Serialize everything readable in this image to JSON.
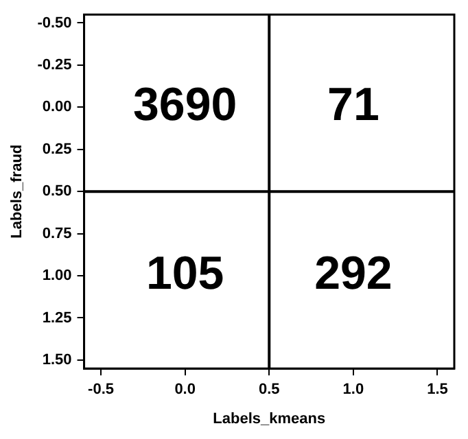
{
  "chart_data": {
    "type": "heatmap",
    "xlabel": "Labels_kmeans",
    "ylabel": "Labels_fraud",
    "x": [
      0,
      1
    ],
    "cells": [
      [
        3690,
        71
      ],
      [
        105,
        292
      ]
    ],
    "data_labels": true,
    "xlim": [
      -0.6,
      1.6
    ],
    "xticks": [
      {
        "value": -0.5,
        "label": "-0.5"
      },
      {
        "value": 0,
        "label": "0.0"
      },
      {
        "value": 0.5,
        "label": "0.5"
      },
      {
        "value": 1,
        "label": "1.0"
      },
      {
        "value": 1.5,
        "label": "1.5"
      }
    ],
    "ylim": [
      1.55,
      -0.55
    ],
    "yticks": [
      {
        "value": -0.5,
        "label": "-0.50"
      },
      {
        "value": -0.25,
        "label": "-0.25"
      },
      {
        "value": 0,
        "label": "0.00"
      },
      {
        "value": 0.25,
        "label": "0.25"
      },
      {
        "value": 0.5,
        "label": "0.50"
      },
      {
        "value": 0.75,
        "label": "0.75"
      },
      {
        "value": 1,
        "label": "1.00"
      },
      {
        "value": 1.25,
        "label": "1.25"
      },
      {
        "value": 1.5,
        "label": "1.50"
      }
    ],
    "grid": true,
    "legend": false
  }
}
